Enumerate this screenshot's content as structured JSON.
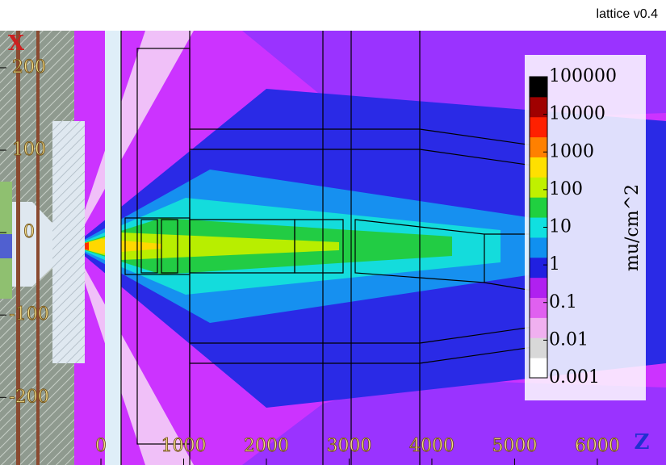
{
  "chart_data": {
    "type": "colormap",
    "title": "lattice v0.4",
    "x_label": "Z",
    "y_label": "X",
    "xlim": [
      -1220,
      6830
    ],
    "ylim": [
      -282,
      245
    ],
    "xticks": [
      0,
      1000,
      2000,
      3000,
      4000,
      5000,
      6000
    ],
    "yticks": [
      200,
      100,
      0,
      -100,
      -200
    ],
    "colorbar": {
      "label": "mu/cm^2",
      "log": true,
      "lim": [
        0.001,
        100000
      ],
      "ticks": [
        100000,
        10000,
        1000,
        100,
        10,
        1,
        0.1,
        0.01,
        0.001
      ],
      "colors": [
        "#ffffff",
        "#d8d8d8",
        "#f0b0f0",
        "#e060f0",
        "#b020f0",
        "#2020e0",
        "#1090f0",
        "#10e0e0",
        "#20d040",
        "#c0f000",
        "#ffe000",
        "#ff8000",
        "#ff2000",
        "#a00000",
        "#000000"
      ]
    }
  }
}
